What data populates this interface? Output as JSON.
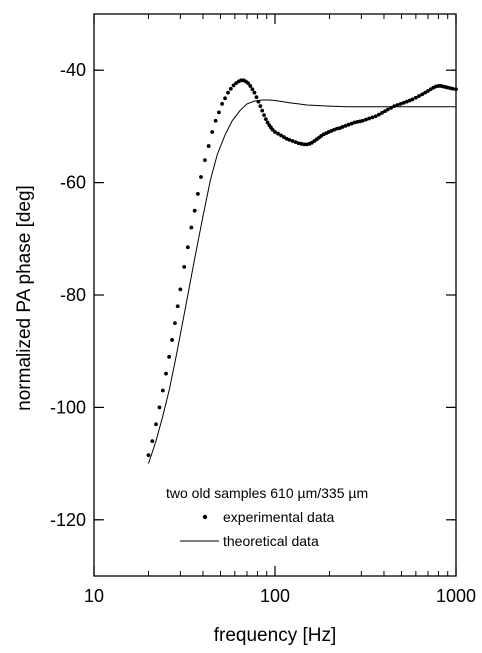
{
  "chart_data": {
    "type": "scatter",
    "xlabel": "frequency [Hz]",
    "ylabel": "normalized PA phase [deg]",
    "xscale": "log",
    "xlim": [
      10,
      1000
    ],
    "ylim": [
      -130,
      -30
    ],
    "x_ticks": [
      10,
      100,
      1000
    ],
    "x_tick_labels": [
      "10",
      "100",
      "1000"
    ],
    "y_ticks": [
      -120,
      -100,
      -80,
      -60,
      -40
    ],
    "y_tick_labels": [
      "-120",
      "-100",
      "-80",
      "-60",
      "-40"
    ],
    "grid": false,
    "legend": {
      "placement": "bottom-right",
      "title": "two old samples 610 µm/335 µm",
      "entries": [
        "experimental data",
        "theoretical data"
      ]
    },
    "series": [
      {
        "name": "experimental data",
        "marker": "dot",
        "x": [
          20,
          21,
          22,
          23,
          24,
          25,
          26,
          27,
          28,
          29,
          30,
          31.5,
          33,
          34.5,
          36,
          37.5,
          39,
          41,
          43,
          45,
          47,
          49,
          51,
          53,
          55,
          57,
          59,
          61,
          63,
          65,
          67,
          69,
          71,
          73,
          75,
          77,
          79,
          81,
          83,
          85,
          87,
          89,
          91,
          93,
          95,
          97,
          100,
          104,
          108,
          112,
          116,
          120,
          125,
          130,
          135,
          140,
          145,
          150,
          155,
          160,
          165,
          170,
          175,
          180,
          186,
          192,
          198,
          205,
          212,
          220,
          228,
          236,
          245,
          255,
          265,
          275,
          285,
          295,
          305,
          318,
          331,
          345,
          360,
          375,
          390,
          405,
          420,
          438,
          456,
          475,
          495,
          515,
          535,
          555,
          575,
          600,
          625,
          650,
          675,
          700,
          725,
          750,
          775,
          800,
          825,
          850,
          875,
          900,
          930,
          960,
          1000
        ],
        "y": [
          -108.5,
          -106,
          -103,
          -100,
          -97,
          -94,
          -91,
          -88,
          -85,
          -82,
          -79,
          -75,
          -71.5,
          -68,
          -65,
          -62,
          -59,
          -56,
          -53.5,
          -51,
          -49,
          -47.5,
          -46,
          -45,
          -44,
          -43.3,
          -42.7,
          -42.3,
          -42,
          -41.8,
          -41.8,
          -42,
          -42.3,
          -42.8,
          -43.4,
          -44,
          -44.8,
          -45.6,
          -46.4,
          -47.2,
          -48,
          -48.7,
          -49.3,
          -49.8,
          -50.2,
          -50.6,
          -51,
          -51.3,
          -51.6,
          -51.9,
          -52.2,
          -52.4,
          -52.6,
          -52.8,
          -53,
          -53.1,
          -53.2,
          -53.2,
          -53.1,
          -52.9,
          -52.6,
          -52.3,
          -52,
          -51.7,
          -51.4,
          -51.2,
          -51,
          -50.8,
          -50.6,
          -50.4,
          -50.3,
          -50.1,
          -49.9,
          -49.7,
          -49.5,
          -49.3,
          -49.2,
          -49.1,
          -49,
          -48.8,
          -48.6,
          -48.4,
          -48.2,
          -47.9,
          -47.6,
          -47.3,
          -47,
          -46.7,
          -46.4,
          -46.2,
          -46,
          -45.8,
          -45.6,
          -45.4,
          -45.2,
          -44.9,
          -44.6,
          -44.3,
          -44,
          -43.7,
          -43.4,
          -43.1,
          -42.9,
          -42.8,
          -42.8,
          -42.9,
          -43,
          -43.1,
          -43.2,
          -43.3,
          -43.4
        ]
      },
      {
        "name": "theoretical data",
        "marker": "line",
        "x": [
          20,
          22,
          24,
          26,
          28,
          30,
          33,
          36,
          40,
          44,
          48,
          53,
          58,
          64,
          70,
          77,
          85,
          93,
          100,
          110,
          120,
          135,
          150,
          175,
          200,
          250,
          300,
          400,
          500,
          700,
          1000
        ],
        "y": [
          -110,
          -106,
          -101.5,
          -97,
          -92,
          -87,
          -80,
          -73.5,
          -66,
          -59.5,
          -55,
          -51.5,
          -49,
          -47.2,
          -46,
          -45.5,
          -45.3,
          -45.3,
          -45.4,
          -45.6,
          -45.8,
          -46,
          -46.2,
          -46.3,
          -46.4,
          -46.5,
          -46.5,
          -46.5,
          -46.5,
          -46.5,
          -46.5
        ]
      }
    ]
  }
}
